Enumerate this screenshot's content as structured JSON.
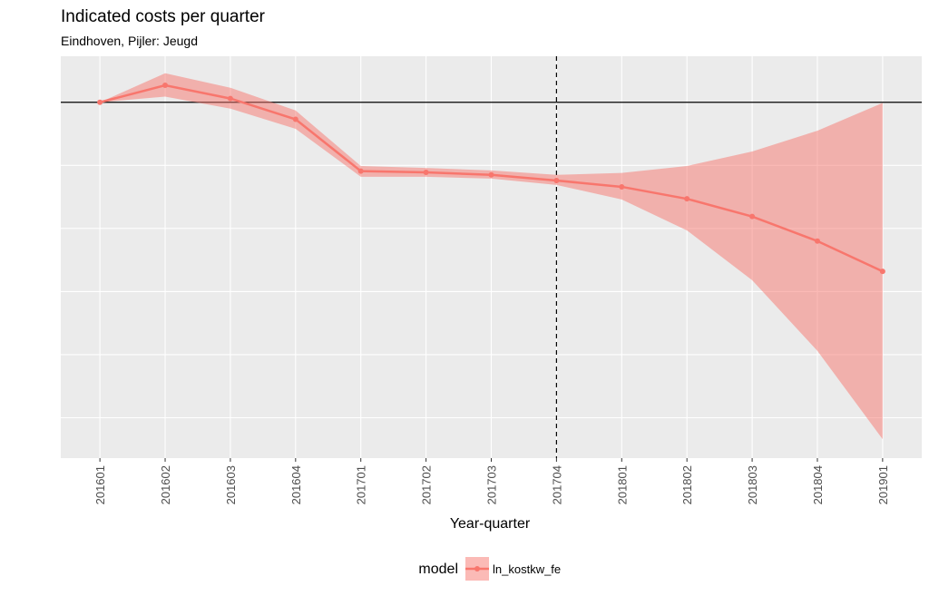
{
  "chart_data": {
    "type": "line",
    "title": "Indicated costs per quarter",
    "subtitle": "Eindhoven, Pijler: Jeugd",
    "x_label": "Year-quarter",
    "legend_title": "model",
    "categories": [
      "201601",
      "201602",
      "201603",
      "201604",
      "201701",
      "201702",
      "201703",
      "201704",
      "201801",
      "201802",
      "201803",
      "201804",
      "201901"
    ],
    "series": [
      {
        "name": "ln_kostkw_fe",
        "color": "#f8766d",
        "values": [
          0,
          0.027,
          0.006,
          -0.027,
          -0.109,
          -0.111,
          -0.115,
          -0.124,
          -0.134,
          -0.153,
          -0.181,
          -0.22,
          -0.268
        ],
        "lower": [
          0,
          0.009,
          -0.01,
          -0.042,
          -0.118,
          -0.118,
          -0.121,
          -0.131,
          -0.154,
          -0.203,
          -0.282,
          -0.394,
          -0.534
        ],
        "upper": [
          0,
          0.046,
          0.023,
          -0.013,
          -0.101,
          -0.104,
          -0.108,
          -0.115,
          -0.112,
          -0.101,
          -0.078,
          -0.045,
          -0.001
        ]
      }
    ],
    "ylim": [
      -0.564,
      0.073
    ],
    "ygrid": [
      -0.5,
      -0.4,
      -0.3,
      -0.2,
      -0.1
    ],
    "hline": 0,
    "vline_category": 7,
    "grid": true,
    "legend_position": "bottom"
  }
}
